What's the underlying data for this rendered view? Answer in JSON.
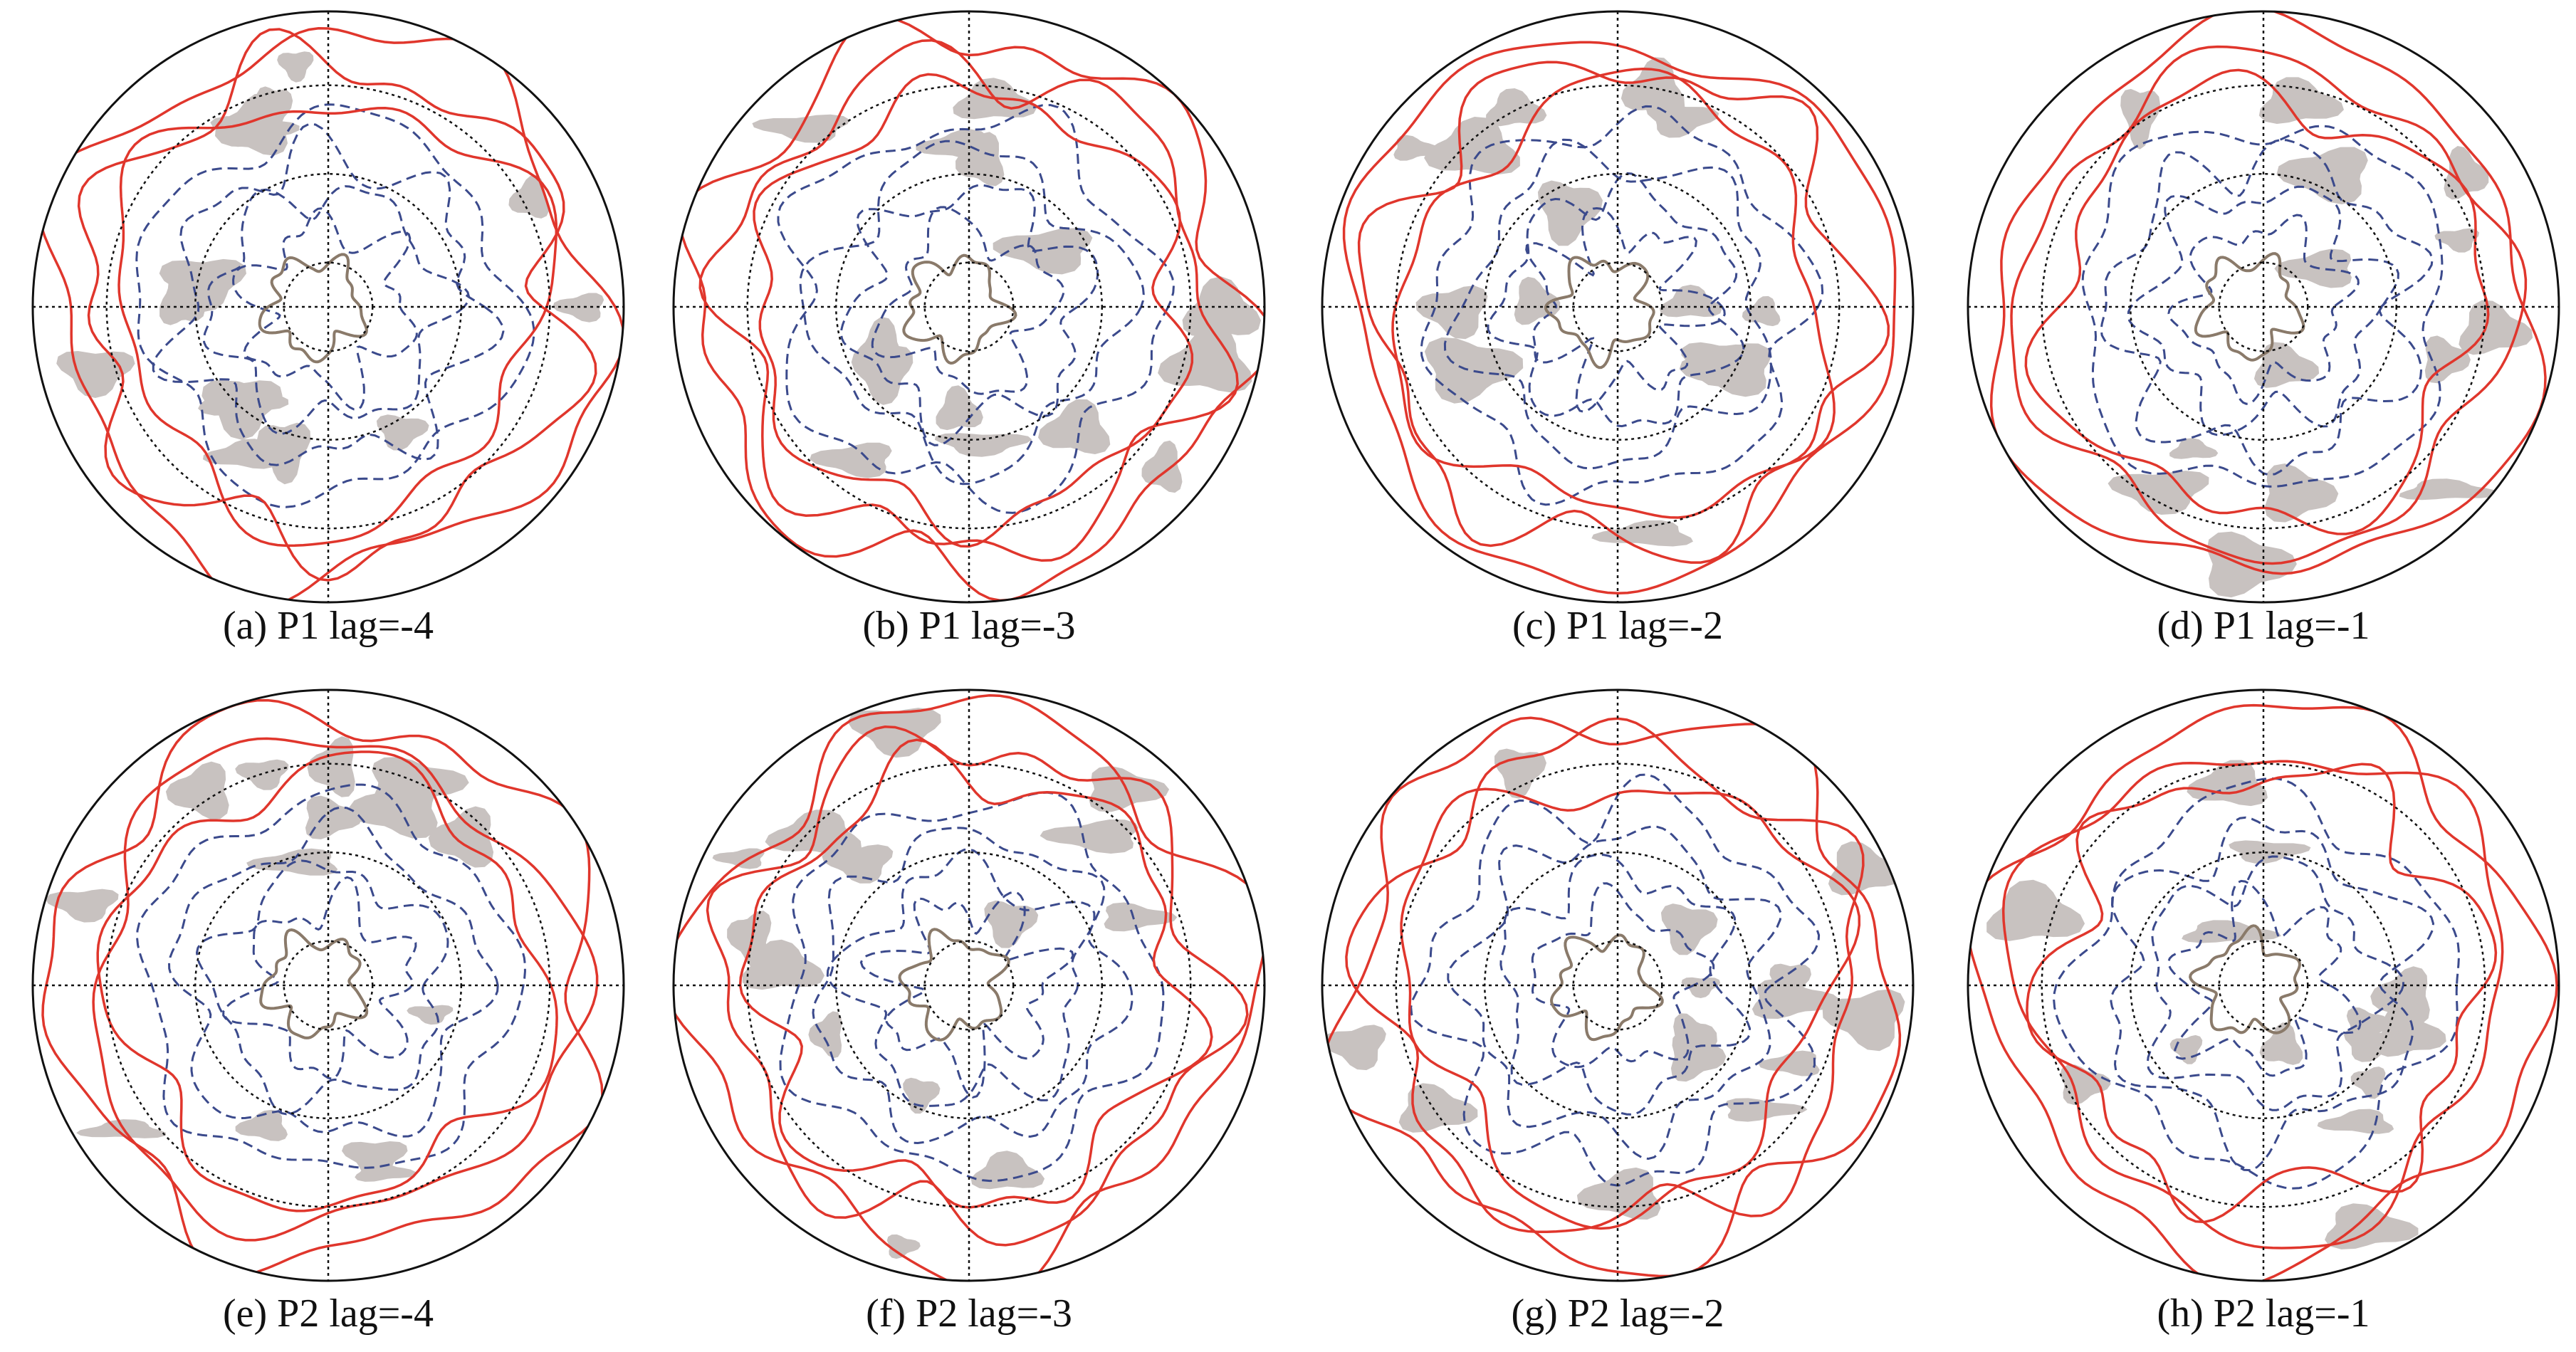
{
  "panels": [
    {
      "caption": "(a) P1 lag=-4"
    },
    {
      "caption": "(b) P1 lag=-3"
    },
    {
      "caption": "(c) P1 lag=-2"
    },
    {
      "caption": "(d) P1 lag=-1"
    },
    {
      "caption": "(e) P2 lag=-4"
    },
    {
      "caption": "(f) P2 lag=-3"
    },
    {
      "caption": "(g) P2 lag=-2"
    },
    {
      "caption": "(h) P2 lag=-1"
    }
  ]
}
